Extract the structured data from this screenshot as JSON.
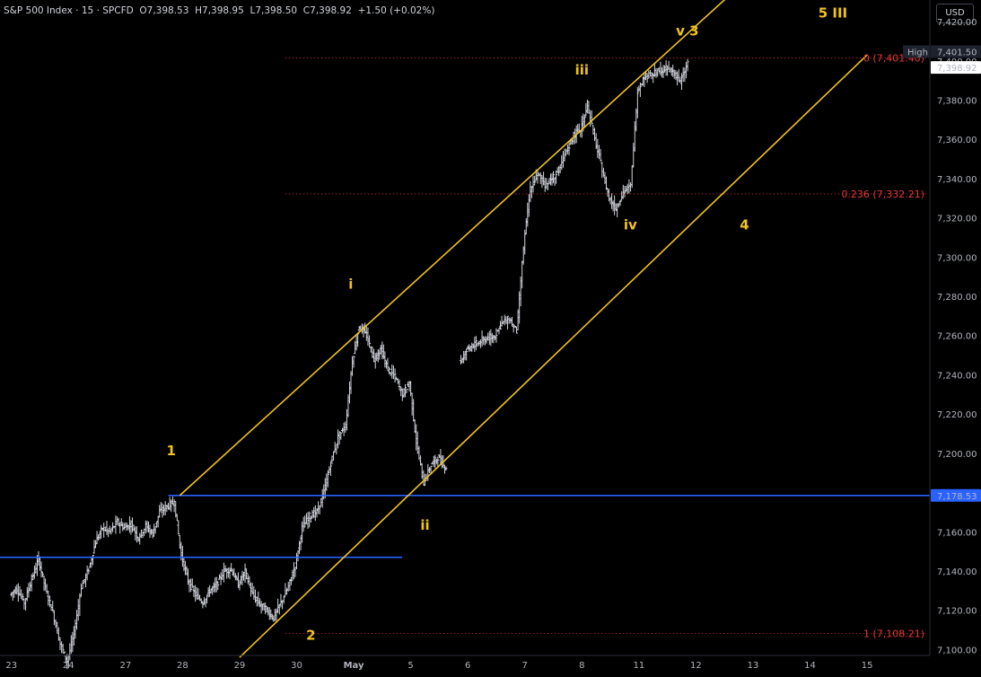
{
  "header": {
    "symbol": "S&P 500 Index",
    "interval": "15",
    "source": "SPCFD",
    "open_label": "O",
    "open": "7,398.53",
    "high_label": "H",
    "high": "7,398.95",
    "low_label": "L",
    "low": "7,398.50",
    "close_label": "C",
    "close": "7,398.92",
    "change": "+1.50 (+0.02%)"
  },
  "currency_button": "USD",
  "colors": {
    "background": "#000000",
    "channel": "#f2c31d",
    "support": "#2962ff",
    "fib": "#e53935",
    "candles": "#d1d4dc"
  },
  "chart_data": {
    "type": "line",
    "subtype": "ohlc-bars",
    "y_ticks": [
      "7,420.00",
      "7,400.00",
      "7,380.00",
      "7,360.00",
      "7,340.00",
      "7,320.00",
      "7,300.00",
      "7,280.00",
      "7,260.00",
      "7,240.00",
      "7,220.00",
      "7,200.00",
      "7,180.00",
      "7,160.00",
      "7,140.00",
      "7,120.00",
      "7,100.00"
    ],
    "y_tick_values": [
      7420,
      7400,
      7380,
      7360,
      7340,
      7320,
      7300,
      7280,
      7260,
      7240,
      7220,
      7200,
      7180,
      7160,
      7140,
      7120,
      7100
    ],
    "ylim": [
      7097,
      7431
    ],
    "x_ticks": [
      "23",
      "24",
      "27",
      "28",
      "29",
      "30",
      "May",
      "5",
      "6",
      "7",
      "8",
      "11",
      "12",
      "13",
      "14",
      "15"
    ],
    "x_tick_index": [
      0,
      1,
      2,
      3,
      4,
      5,
      6,
      7,
      8,
      9,
      10,
      11,
      12,
      13,
      14,
      15
    ],
    "xlim": [
      -0.2,
      16.1
    ],
    "price_labels": [
      {
        "label": "High",
        "value": "7,401.50",
        "price": 7401.5
      },
      {
        "label": "",
        "value": "7,398.92",
        "price": 7398.92
      },
      {
        "label": "",
        "value": "7,178.53",
        "price": 7178.53
      }
    ],
    "fib_levels": [
      {
        "text": "0 (7,401.40)",
        "price": 7401.4
      },
      {
        "text": "0.236 (7,332.21)",
        "price": 7332.21
      },
      {
        "text": "1 (7,108.21)",
        "price": 7108.21
      }
    ],
    "wave_labels": [
      {
        "text": "1",
        "x": 2.8,
        "price": 7199
      },
      {
        "text": "2",
        "x": 5.25,
        "price": 7105
      },
      {
        "text": "i",
        "x": 5.95,
        "price": 7284
      },
      {
        "text": "ii",
        "x": 7.25,
        "price": 7161
      },
      {
        "text": "iii",
        "x": 10.0,
        "price": 7393
      },
      {
        "text": "iv",
        "x": 10.85,
        "price": 7314
      },
      {
        "text": "v 3",
        "x": 11.85,
        "price": 7413
      },
      {
        "text": "4",
        "x": 12.85,
        "price": 7314
      },
      {
        "text": "5 III",
        "x": 14.4,
        "price": 7422
      }
    ],
    "channel_upper": [
      [
        2.95,
        7178.5
      ],
      [
        12.8,
        7439
      ]
    ],
    "channel_lower": [
      [
        4.0,
        7096
      ],
      [
        15.0,
        7403
      ]
    ],
    "support_lines": [
      {
        "from": [
          -0.2,
          7147
        ],
        "to": [
          6.85,
          7147
        ]
      },
      {
        "from": [
          2.75,
          7178.53
        ],
        "to": [
          16.1,
          7178.53
        ]
      }
    ],
    "series": [
      {
        "values": [
          [
            0.0,
            7128
          ],
          [
            0.12,
            7131
          ],
          [
            0.25,
            7124
          ],
          [
            0.38,
            7136
          ],
          [
            0.5,
            7146
          ],
          [
            0.62,
            7131
          ],
          [
            0.75,
            7119
          ],
          [
            0.88,
            7103
          ],
          [
            1.0,
            7094
          ],
          [
            1.12,
            7108
          ],
          [
            1.25,
            7132
          ],
          [
            1.38,
            7141
          ],
          [
            1.5,
            7155
          ],
          [
            1.62,
            7162
          ],
          [
            1.75,
            7160
          ],
          [
            1.88,
            7165
          ],
          [
            2.0,
            7162
          ],
          [
            2.12,
            7164
          ],
          [
            2.25,
            7157
          ],
          [
            2.38,
            7163
          ],
          [
            2.5,
            7159
          ],
          [
            2.62,
            7170
          ],
          [
            2.75,
            7173
          ],
          [
            2.88,
            7175
          ],
          [
            3.0,
            7148
          ],
          [
            3.12,
            7135
          ],
          [
            3.25,
            7128
          ],
          [
            3.38,
            7124
          ],
          [
            3.5,
            7130
          ],
          [
            3.62,
            7133
          ],
          [
            3.75,
            7140
          ],
          [
            3.88,
            7141
          ],
          [
            4.0,
            7133
          ],
          [
            4.12,
            7140
          ],
          [
            4.25,
            7128
          ],
          [
            4.38,
            7123
          ],
          [
            4.5,
            7120
          ],
          [
            4.62,
            7116
          ],
          [
            4.75,
            7124
          ],
          [
            4.88,
            7132
          ],
          [
            5.0,
            7143
          ],
          [
            5.12,
            7162
          ],
          [
            5.25,
            7168
          ],
          [
            5.38,
            7170
          ],
          [
            5.5,
            7180
          ],
          [
            5.62,
            7195
          ],
          [
            5.75,
            7208
          ],
          [
            5.88,
            7214
          ],
          [
            6.0,
            7247
          ],
          [
            6.12,
            7265
          ],
          [
            6.25,
            7260
          ],
          [
            6.38,
            7248
          ],
          [
            6.5,
            7253
          ],
          [
            6.62,
            7243
          ],
          [
            6.75,
            7239
          ],
          [
            6.88,
            7230
          ],
          [
            7.0,
            7236
          ],
          [
            7.12,
            7206
          ],
          [
            7.25,
            7185
          ],
          [
            7.38,
            7194
          ],
          [
            7.5,
            7198
          ],
          [
            7.62,
            7193
          ],
          [
            7.88,
            7246
          ],
          [
            8.0,
            7252
          ],
          [
            8.12,
            7255
          ],
          [
            8.25,
            7257
          ],
          [
            8.38,
            7259
          ],
          [
            8.5,
            7260
          ],
          [
            8.62,
            7266
          ],
          [
            8.75,
            7269
          ],
          [
            8.88,
            7262
          ],
          [
            9.0,
            7305
          ],
          [
            9.12,
            7335
          ],
          [
            9.25,
            7342
          ],
          [
            9.38,
            7337
          ],
          [
            9.5,
            7340
          ],
          [
            9.62,
            7344
          ],
          [
            9.75,
            7353
          ],
          [
            9.88,
            7362
          ],
          [
            10.0,
            7365
          ],
          [
            10.12,
            7378
          ],
          [
            10.25,
            7360
          ],
          [
            10.38,
            7345
          ],
          [
            10.5,
            7330
          ],
          [
            10.62,
            7325
          ],
          [
            10.75,
            7333
          ],
          [
            10.88,
            7336
          ],
          [
            11.0,
            7385
          ],
          [
            11.12,
            7392
          ],
          [
            11.25,
            7393
          ],
          [
            11.38,
            7395
          ],
          [
            11.5,
            7396
          ],
          [
            11.62,
            7395
          ],
          [
            11.75,
            7389
          ],
          [
            11.88,
            7399
          ]
        ]
      }
    ]
  }
}
